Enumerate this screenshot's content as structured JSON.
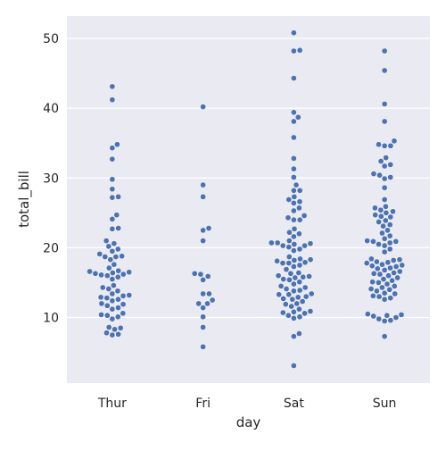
{
  "chart_data": {
    "type": "scatter",
    "subtype": "swarm",
    "xlabel": "day",
    "ylabel": "total_bill",
    "categories": [
      "Thur",
      "Fri",
      "Sat",
      "Sun"
    ],
    "yticks": [
      10,
      20,
      30,
      40,
      50
    ],
    "ylim": [
      0.6,
      53.2
    ],
    "grid": true,
    "colors": {
      "background": "#eaeaf2",
      "grid": "#ffffff",
      "point": "#4c72b0"
    },
    "series": [
      {
        "category": "Thur",
        "values": [
          43.1,
          41.2,
          34.8,
          34.3,
          32.7,
          29.8,
          28.4,
          27.3,
          27.2,
          24.7,
          24.1,
          22.8,
          22.7,
          21.0,
          20.6,
          20.2,
          19.8,
          19.5,
          19.1,
          18.8,
          18.7,
          18.7,
          18.3,
          17.6,
          17.1,
          16.7,
          16.6,
          16.5,
          16.4,
          16.3,
          16.2,
          16.1,
          16.0,
          15.8,
          15.5,
          14.6,
          14.3,
          14.1,
          13.8,
          13.4,
          13.2,
          13.1,
          12.9,
          12.8,
          12.6,
          12.4,
          12.0,
          11.9,
          11.7,
          11.4,
          11.2,
          10.6,
          10.4,
          10.3,
          10.1,
          9.8,
          8.6,
          8.5,
          8.3,
          7.8,
          7.6,
          7.5
        ]
      },
      {
        "category": "Fri",
        "values": [
          40.2,
          29.0,
          27.3,
          22.8,
          22.5,
          21.0,
          16.3,
          16.2,
          15.9,
          15.4,
          13.4,
          13.4,
          12.5,
          12.0,
          12.0,
          11.4,
          10.1,
          8.6,
          5.8
        ]
      },
      {
        "category": "Sat",
        "values": [
          50.8,
          48.3,
          48.2,
          44.3,
          39.4,
          38.7,
          38.1,
          35.8,
          32.8,
          31.3,
          30.1,
          29.0,
          28.2,
          28.2,
          27.3,
          26.9,
          26.6,
          26.4,
          25.7,
          25.3,
          24.6,
          24.3,
          24.0,
          24.0,
          22.7,
          22.2,
          22.0,
          21.6,
          21.0,
          20.7,
          20.7,
          20.6,
          20.5,
          20.3,
          20.3,
          20.1,
          19.8,
          19.6,
          18.7,
          18.4,
          18.3,
          18.2,
          18.1,
          17.9,
          17.8,
          17.8,
          17.5,
          17.3,
          16.9,
          16.4,
          16.3,
          16.0,
          15.9,
          15.8,
          15.7,
          15.5,
          15.4,
          15.1,
          14.8,
          14.5,
          14.3,
          14.1,
          13.9,
          13.8,
          13.4,
          13.3,
          13.3,
          13.0,
          12.9,
          12.7,
          12.6,
          12.3,
          12.0,
          11.9,
          11.6,
          11.2,
          10.9,
          10.8,
          10.7,
          10.6,
          10.3,
          10.1,
          9.9,
          7.7,
          7.3,
          3.1
        ]
      },
      {
        "category": "Sun",
        "values": [
          48.2,
          45.4,
          40.6,
          38.1,
          35.3,
          34.8,
          34.6,
          34.6,
          32.9,
          32.4,
          31.9,
          31.7,
          30.6,
          30.4,
          30.1,
          29.9,
          28.6,
          26.9,
          25.9,
          25.7,
          25.4,
          25.2,
          25.0,
          24.7,
          24.5,
          24.4,
          23.9,
          23.7,
          23.3,
          23.1,
          22.5,
          22.1,
          21.7,
          21.3,
          21.0,
          20.9,
          20.9,
          20.7,
          20.5,
          20.3,
          19.8,
          19.4,
          18.4,
          18.3,
          18.2,
          18.0,
          17.9,
          17.8,
          17.6,
          17.5,
          17.4,
          17.3,
          17.1,
          17.0,
          16.8,
          16.6,
          16.4,
          16.3,
          16.2,
          16.0,
          15.7,
          15.5,
          15.3,
          15.1,
          15.0,
          14.8,
          14.5,
          14.3,
          14.1,
          14.0,
          13.8,
          13.5,
          13.4,
          13.1,
          13.0,
          12.8,
          12.6,
          10.5,
          10.4,
          10.3,
          10.2,
          10.0,
          9.8,
          9.6,
          9.5,
          7.3
        ]
      }
    ]
  }
}
